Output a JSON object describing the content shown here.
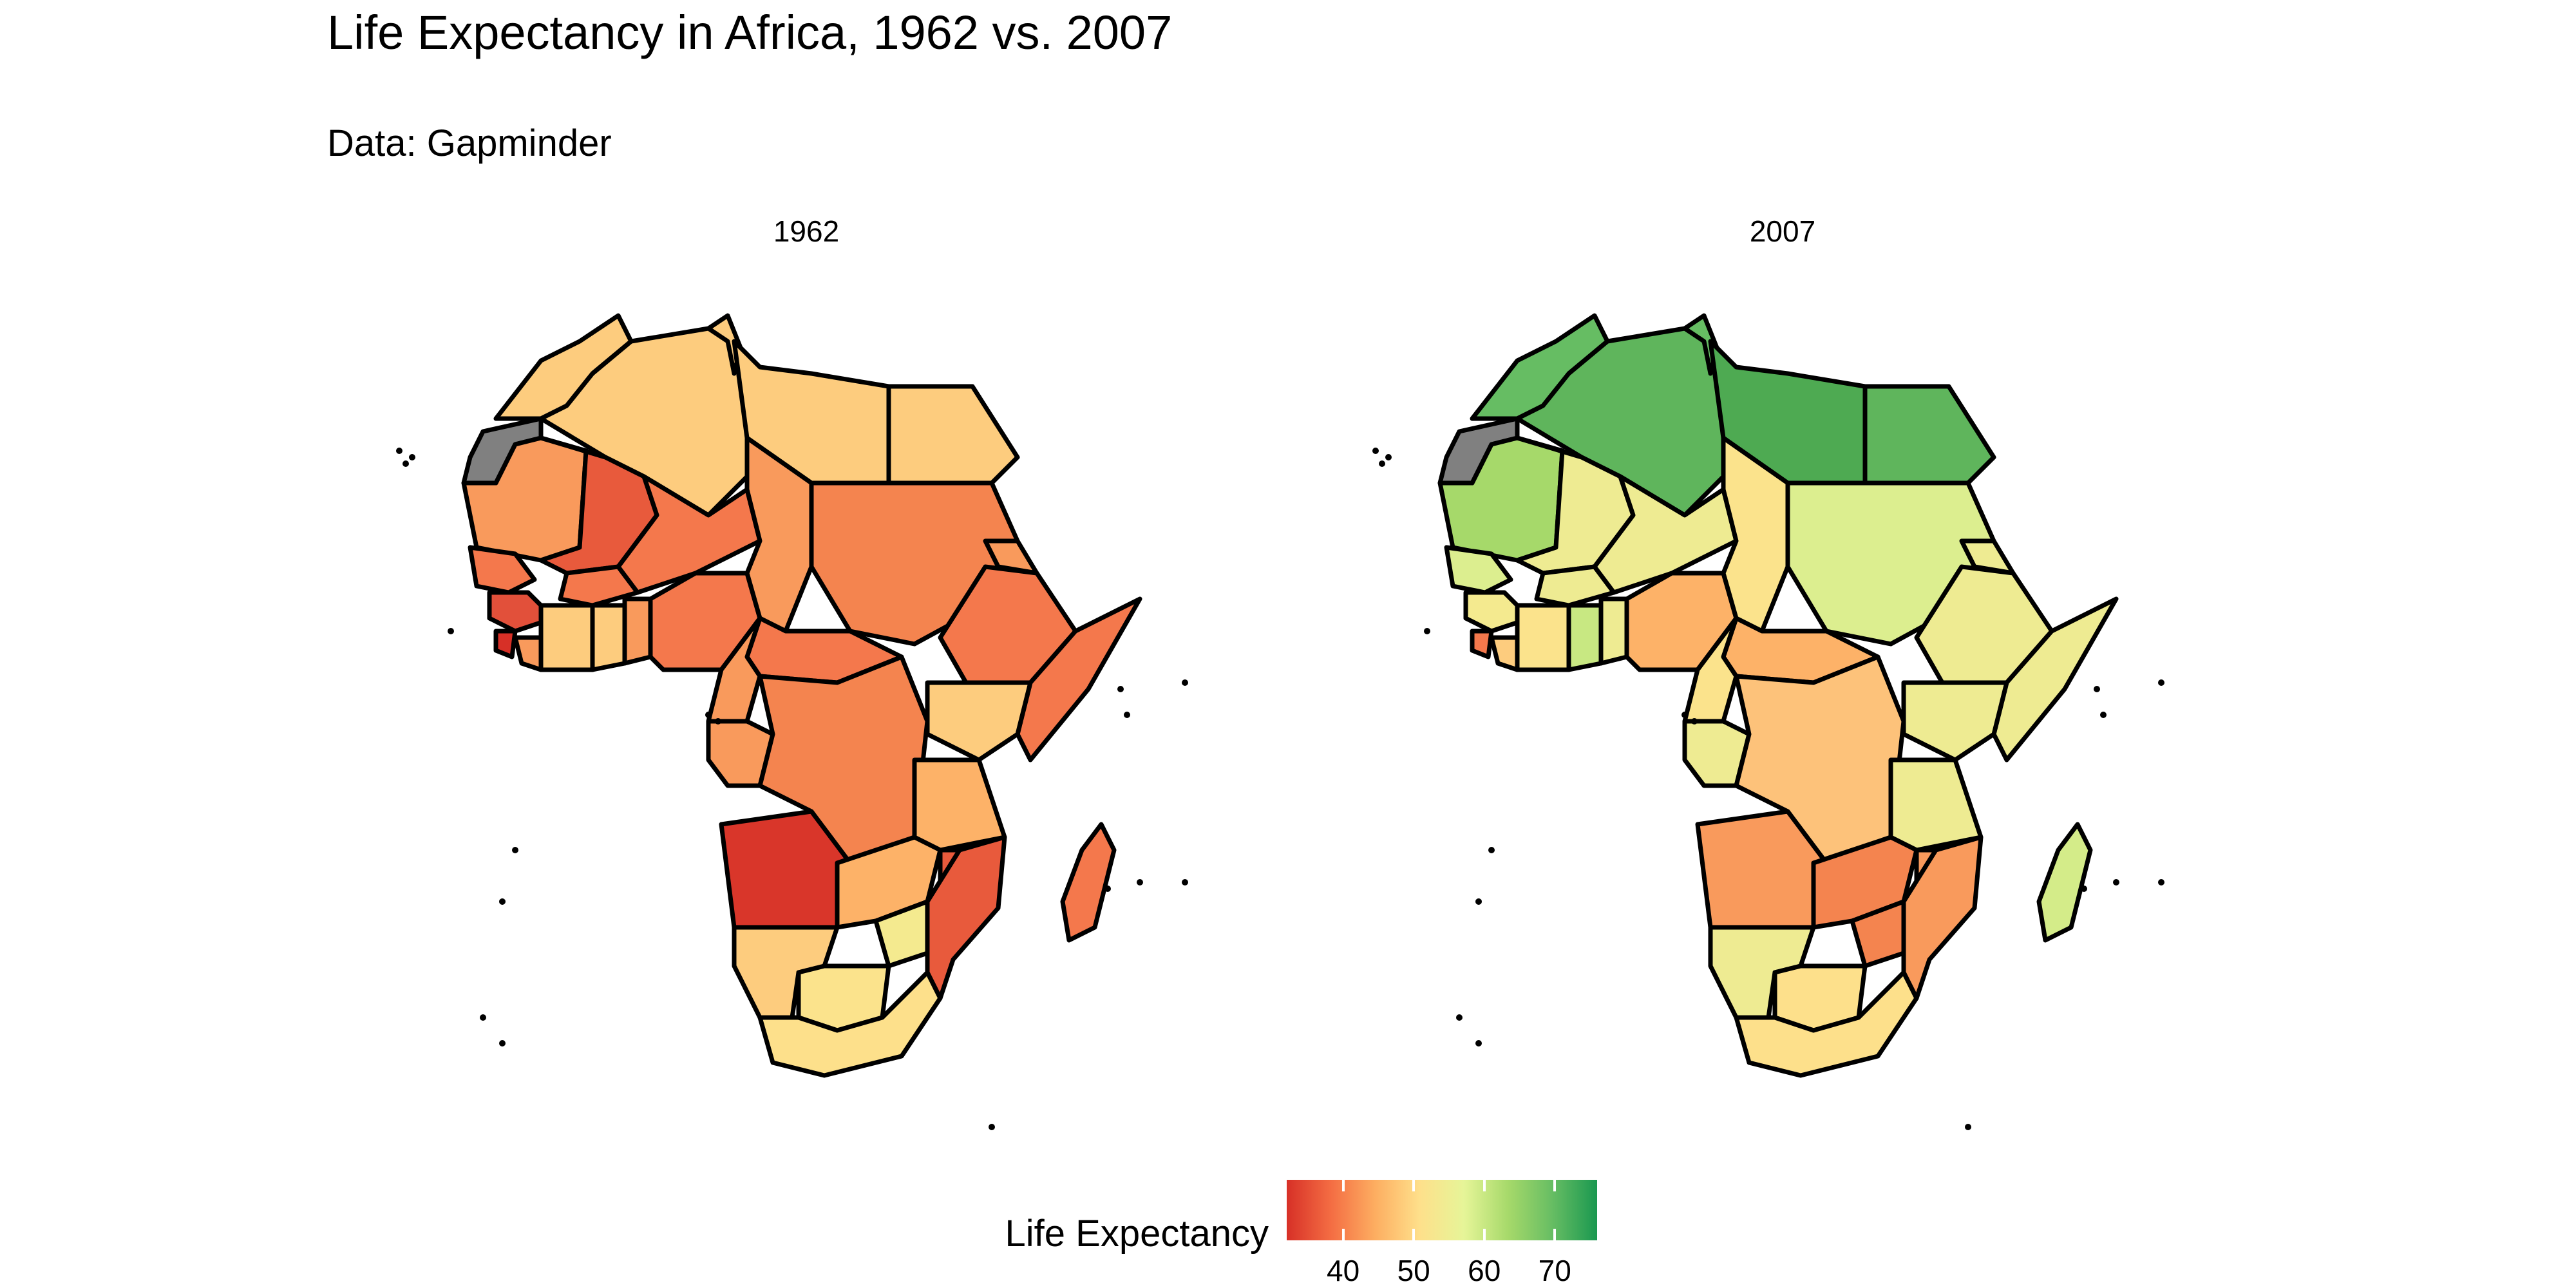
{
  "title": "Life Expectancy in Africa, 1962 vs. 2007",
  "subtitle": "Data: Gapminder",
  "panels": [
    "1962",
    "2007"
  ],
  "legend": {
    "title": "Life Expectancy",
    "ticks": [
      40,
      50,
      60,
      70
    ],
    "colors": [
      "#d73027",
      "#f46d43",
      "#fdae61",
      "#fee08b",
      "#e6f598",
      "#a6d96a",
      "#66bd63",
      "#1a9850"
    ],
    "range": [
      32,
      76
    ],
    "missing_color": "#808080"
  },
  "map_data": {
    "type": "choropleth",
    "region": "Africa",
    "years": [
      "1962",
      "2007"
    ]
  }
}
